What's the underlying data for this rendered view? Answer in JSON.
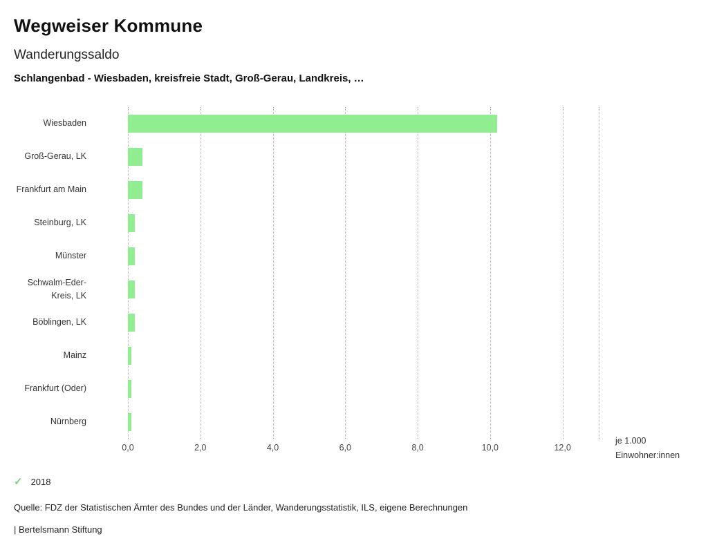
{
  "header": {
    "title": "Wegweiser Kommune",
    "subtitle": "Wanderungssaldo",
    "selection": "Schlangenbad - Wiesbaden, kreisfreie Stadt, Groß-Gerau, Landkreis, …"
  },
  "chart_data": {
    "type": "bar",
    "orientation": "horizontal",
    "title": "Wanderungssaldo",
    "categories": [
      "Wiesbaden",
      "Groß-Gerau, LK",
      "Frankfurt am Main",
      "Steinburg, LK",
      "Münster",
      "Schwalm-Eder-Kreis, LK",
      "Böblingen, LK",
      "Mainz",
      "Frankfurt (Oder)",
      "Nürnberg"
    ],
    "series": [
      {
        "name": "2018",
        "values": [
          10.2,
          0.4,
          0.4,
          0.2,
          0.2,
          0.2,
          0.2,
          0.1,
          0.1,
          0.1
        ]
      }
    ],
    "xlim": [
      0,
      13
    ],
    "xticks": [
      0,
      2,
      4,
      6,
      8,
      10,
      12
    ],
    "xtick_labels": [
      "0,0",
      "2,0",
      "4,0",
      "6,0",
      "8,0",
      "10,0",
      "12,0"
    ],
    "unit_label_lines": [
      "je 1.000",
      "Einwohner:innen"
    ],
    "bar_color": "#90ee90",
    "grid": "dotted-vertical",
    "legend_position": "bottom-left"
  },
  "legend": {
    "check_icon": "✓",
    "year": "2018"
  },
  "footer": {
    "source": "Quelle: FDZ der Statistischen Ämter des Bundes und der Länder, Wanderungsstatistik, ILS, eigene Berechnungen",
    "attribution": "| Bertelsmann Stiftung"
  }
}
